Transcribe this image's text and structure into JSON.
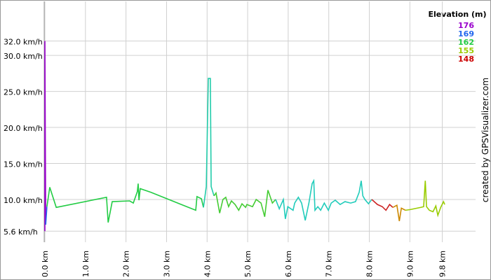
{
  "chart_data": {
    "type": "line",
    "legend_title": "Elevation (m)",
    "legend": [
      {
        "label": 176,
        "color": "#9900cc"
      },
      {
        "label": 169,
        "color": "#2266ee"
      },
      {
        "label": 162,
        "color": "#22cc44"
      },
      {
        "label": 155,
        "color": "#99cc00"
      },
      {
        "label": 148,
        "color": "#cc0000"
      }
    ],
    "credit": "created by GPSVisualizer.com",
    "xlim": [
      0,
      10.62
    ],
    "ylim": [
      4.65,
      37.5
    ],
    "grid": true,
    "xticks": [
      {
        "value": 0,
        "label": "0.0 km"
      },
      {
        "value": 1,
        "label": "1.0 km"
      },
      {
        "value": 2,
        "label": "2.0 km"
      },
      {
        "value": 3,
        "label": "3.0 km"
      },
      {
        "value": 4,
        "label": "4.0 km"
      },
      {
        "value": 5,
        "label": "5.0 km"
      },
      {
        "value": 6,
        "label": "6.0 km"
      },
      {
        "value": 7,
        "label": "7.0 km"
      },
      {
        "value": 8,
        "label": "8.0 km"
      },
      {
        "value": 9,
        "label": "9.0 km"
      },
      {
        "value": 9.8,
        "label": "9.8 km"
      }
    ],
    "yticks": [
      {
        "value": 5.6,
        "label": "5.6 km/h"
      },
      {
        "value": 10,
        "label": "10.0 km/h"
      },
      {
        "value": 15,
        "label": "15.0 km/h"
      },
      {
        "value": 20,
        "label": "20.0 km/h"
      },
      {
        "value": 25,
        "label": "25.0 km/h"
      },
      {
        "value": 30,
        "label": "30.0 km/h"
      },
      {
        "value": 32,
        "label": "32.0 km/h"
      }
    ],
    "series": [
      {
        "color": "#9900cc",
        "x": [
          0,
          0,
          0.01,
          0.02
        ],
        "values": [
          5.6,
          32.0,
          18.8,
          6.5
        ]
      },
      {
        "color": "#2266ee",
        "x": [
          0.02,
          0.05
        ],
        "values": [
          6.5,
          9.0
        ]
      },
      {
        "color": "#22cc44",
        "x": [
          0.05,
          0.12,
          0.28,
          1.52,
          1.56,
          1.66,
          2.09,
          2.18,
          2.28,
          2.3,
          2.32,
          2.35,
          2.61,
          3.72,
          3.75,
          3.86,
          3.91
        ],
        "values": [
          9.0,
          11.7,
          8.9,
          10.3,
          6.8,
          9.7,
          9.8,
          9.5,
          11.1,
          12.2,
          9.9,
          11.5,
          11.0,
          8.5,
          10.4,
          10.1,
          8.9
        ]
      },
      {
        "color": "#22ccaa",
        "x": [
          3.91,
          3.98,
          4.03,
          4.08,
          4.1,
          4.17
        ],
        "values": [
          8.9,
          11.8,
          26.8,
          26.8,
          11.8,
          10.5
        ]
      },
      {
        "color": "#44cc33",
        "x": [
          4.17,
          4.22,
          4.31,
          4.39,
          4.46,
          4.53,
          4.6,
          4.69,
          4.78,
          4.86,
          4.95,
          4.98,
          5.12,
          5.21,
          5.33,
          5.42,
          5.5,
          5.61,
          5.69
        ],
        "values": [
          10.5,
          10.9,
          8.1,
          10.0,
          10.3,
          9.0,
          9.8,
          9.3,
          8.5,
          9.4,
          8.9,
          9.3,
          9.0,
          10.0,
          9.5,
          7.6,
          11.3,
          9.5,
          10.0
        ]
      },
      {
        "color": "#22ccbb",
        "x": [
          5.69,
          5.78,
          5.88,
          5.93,
          5.99,
          6.12,
          6.16,
          6.25,
          6.33,
          6.42,
          6.51,
          6.59,
          6.63,
          6.66,
          6.73,
          6.8,
          6.89,
          6.99,
          7.06,
          7.16,
          7.28,
          7.4,
          7.54,
          7.66,
          7.75,
          7.8,
          7.84,
          7.89,
          7.98,
          8.06
        ],
        "values": [
          10.0,
          8.7,
          10.0,
          7.3,
          9.0,
          8.5,
          9.5,
          10.3,
          9.5,
          7.1,
          9.5,
          12.2,
          12.6,
          8.5,
          9.0,
          8.5,
          9.5,
          8.5,
          9.5,
          9.9,
          9.3,
          9.7,
          9.5,
          9.7,
          11.0,
          12.6,
          10.5,
          10.0,
          9.4,
          10.0
        ]
      },
      {
        "color": "#cc2222",
        "x": [
          8.06,
          8.2,
          8.32,
          8.41,
          8.5,
          8.58
        ],
        "values": [
          10.0,
          9.3,
          9.0,
          8.5,
          9.3,
          8.9
        ]
      },
      {
        "color": "#cc8800",
        "x": [
          8.58,
          8.68,
          8.74,
          8.79,
          8.89
        ],
        "values": [
          8.9,
          9.2,
          7.0,
          8.8,
          8.5
        ]
      },
      {
        "color": "#99cc00",
        "x": [
          8.89,
          9.01,
          9.27,
          9.34,
          9.38,
          9.41,
          9.48,
          9.57,
          9.64,
          9.69,
          9.76,
          9.83,
          9.86
        ],
        "values": [
          8.5,
          8.6,
          8.9,
          9.0,
          12.6,
          9.0,
          8.5,
          8.3,
          9.1,
          7.8,
          8.9,
          9.7,
          9.3
        ]
      }
    ]
  }
}
